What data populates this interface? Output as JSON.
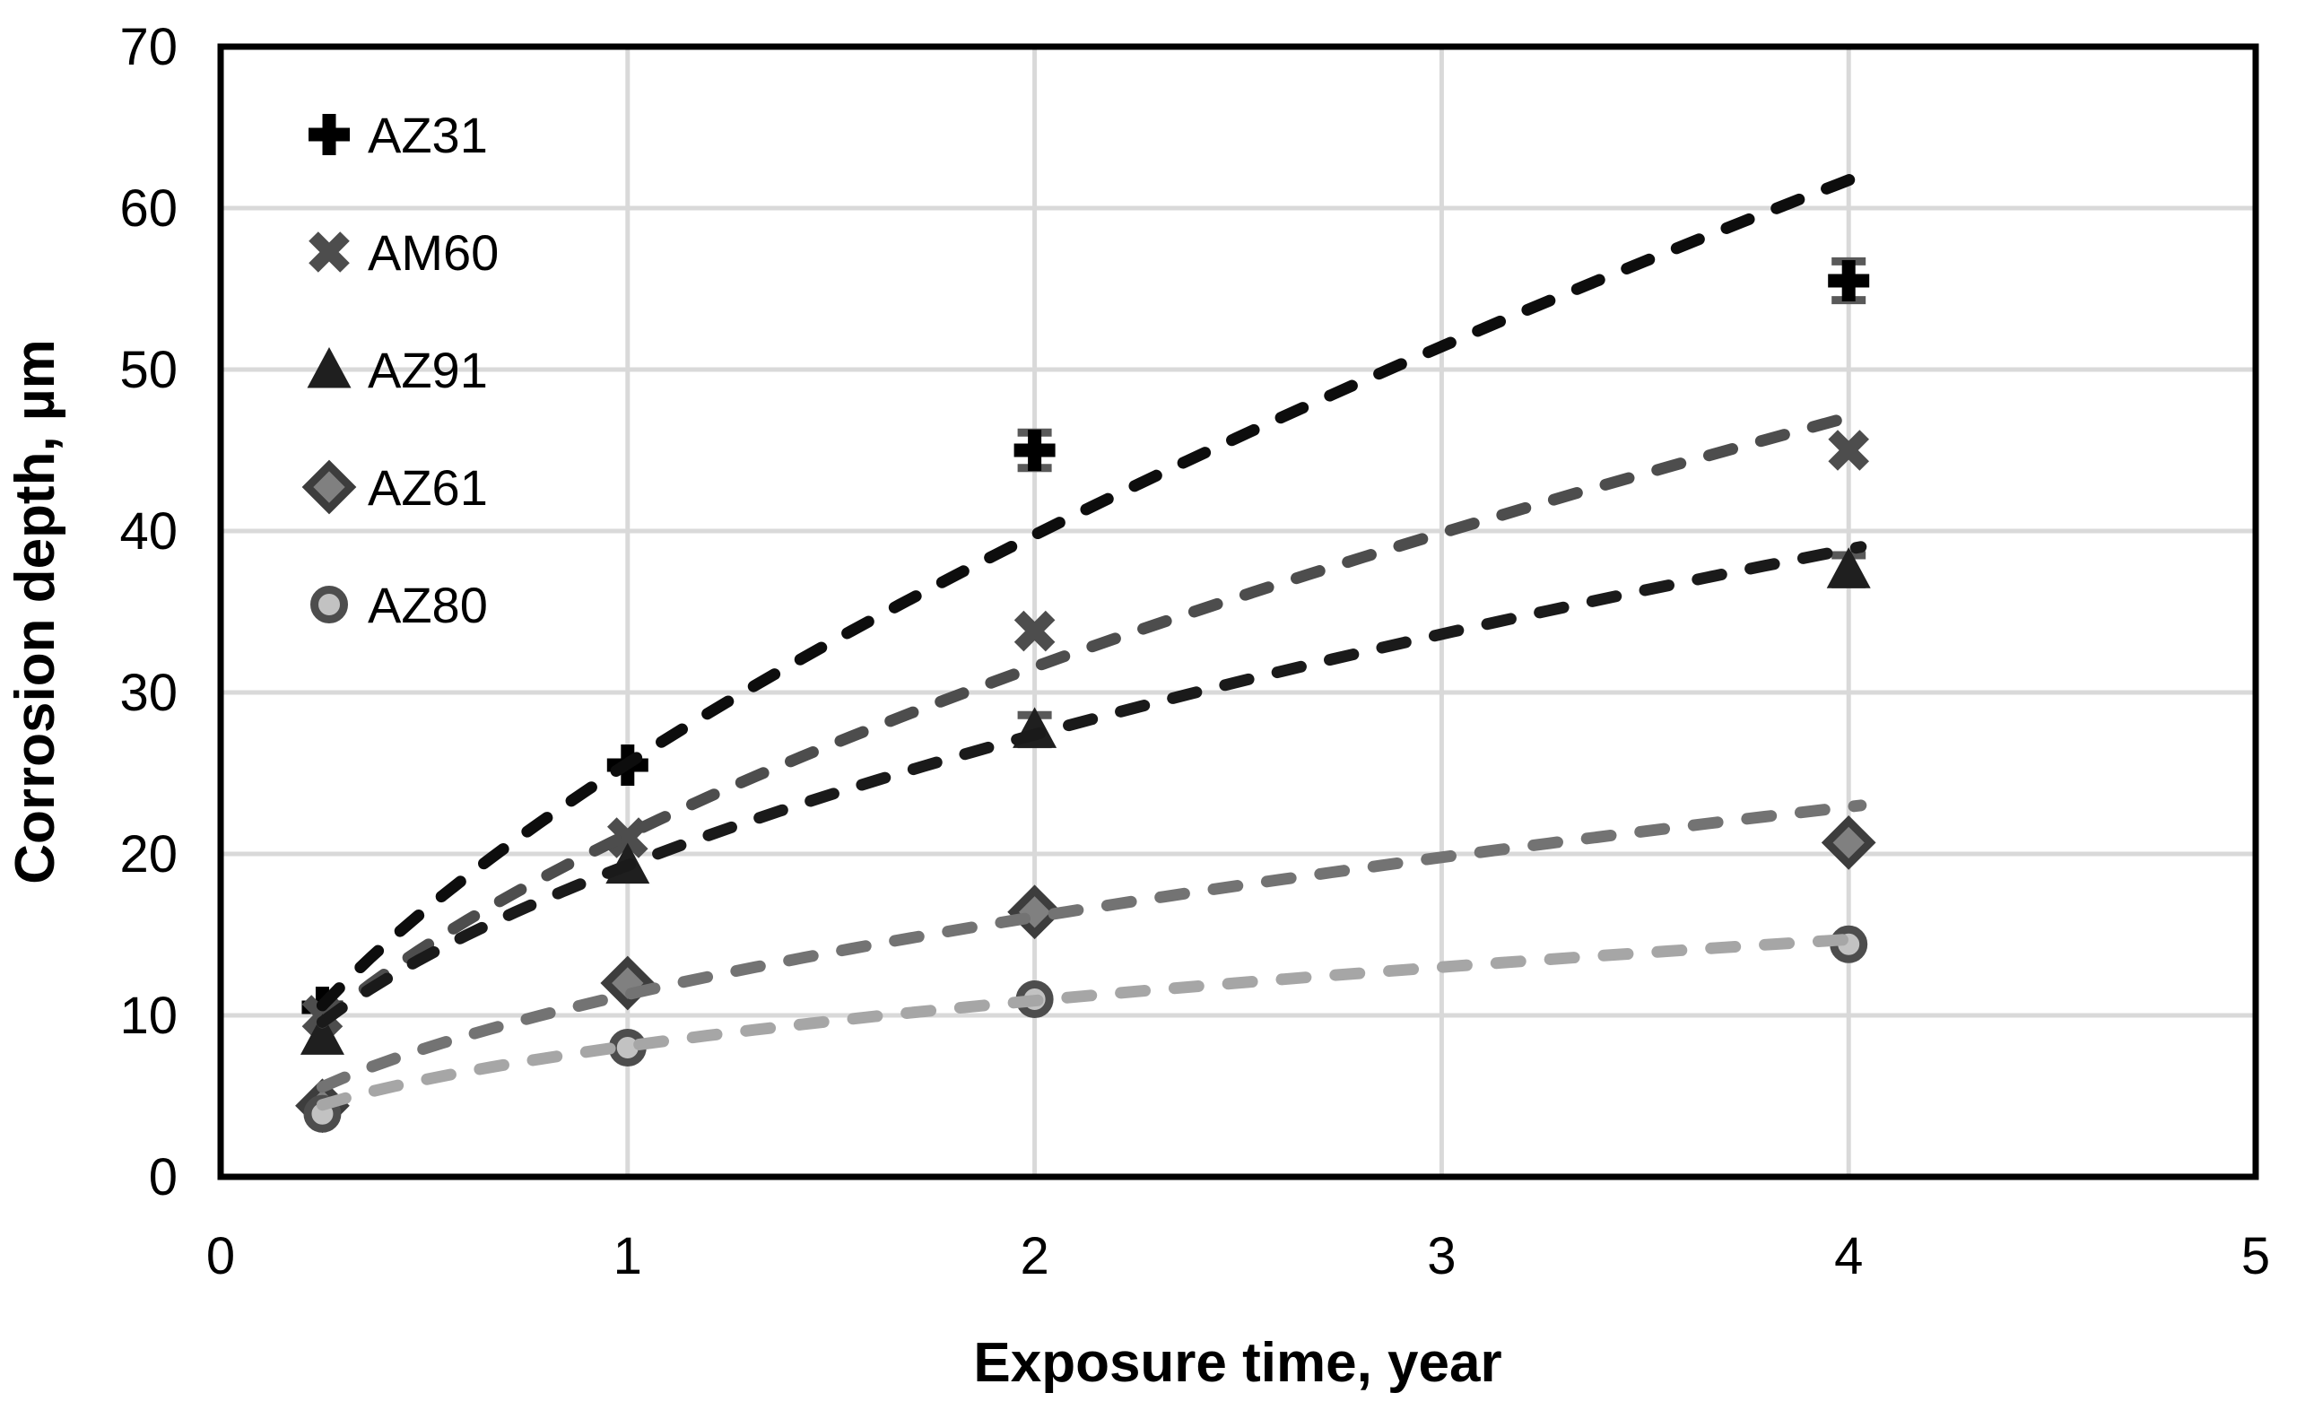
{
  "chart_data": {
    "type": "scatter",
    "title": "",
    "xlabel": "Exposure time, year",
    "ylabel": "Corrosion depth, µm",
    "xlim": [
      0,
      5
    ],
    "ylim": [
      0,
      70
    ],
    "x_ticks": [
      0,
      1,
      2,
      3,
      4,
      5
    ],
    "y_ticks": [
      0,
      10,
      20,
      30,
      40,
      50,
      60,
      70
    ],
    "grid": true,
    "gridline_color": "#d9d9d9",
    "axis_color": "#000000",
    "legend_position": "top-left-inside",
    "x": [
      0.25,
      1,
      2,
      4
    ],
    "trend_x_range": [
      0.25,
      4.03
    ],
    "series": [
      {
        "name": "AZ31",
        "marker": "plus",
        "marker_color": "#000000",
        "marker_stroke": "#000000",
        "trend_color": "#0d0d0d",
        "values": [
          10.5,
          25.5,
          45.0,
          55.5
        ],
        "error": [
          0,
          0,
          1.1,
          1.2
        ],
        "trend": {
          "type": "power",
          "a": 25.6,
          "b": 0.635
        }
      },
      {
        "name": "AM60",
        "marker": "x",
        "marker_color": "#4d4d4d",
        "marker_stroke": "#4d4d4d",
        "trend_color": "#4d4d4d",
        "values": [
          10.0,
          21.0,
          33.8,
          45.0
        ],
        "error": [
          0,
          0,
          0,
          0
        ],
        "trend": {
          "type": "power",
          "a": 21.2,
          "b": 0.575
        }
      },
      {
        "name": "AZ91",
        "marker": "triangle",
        "marker_color": "#1f1f1f",
        "marker_stroke": "#1f1f1f",
        "trend_color": "#1a1a1a",
        "values": [
          8.7,
          19.3,
          27.7,
          37.6
        ],
        "error": [
          0,
          0,
          0.9,
          0.9
        ],
        "trend": {
          "type": "power",
          "a": 19.3,
          "b": 0.505
        }
      },
      {
        "name": "AZ61",
        "marker": "diamond",
        "marker_color": "#808080",
        "marker_stroke": "#3d3d3d",
        "trend_color": "#737373",
        "values": [
          4.4,
          12.0,
          16.4,
          20.7
        ],
        "error": [
          0,
          0,
          0,
          0
        ],
        "trend": {
          "type": "power",
          "a": 11.3,
          "b": 0.51
        }
      },
      {
        "name": "AZ80",
        "marker": "circle",
        "marker_color": "#c2c2c2",
        "marker_stroke": "#4d4d4d",
        "trend_color": "#a6a6a6",
        "values": [
          3.9,
          8.0,
          11.0,
          14.4
        ],
        "error": [
          0,
          0,
          0,
          0
        ],
        "trend": {
          "type": "power",
          "a": 8.1,
          "b": 0.43
        }
      }
    ],
    "error_bar_color": "#595959"
  }
}
